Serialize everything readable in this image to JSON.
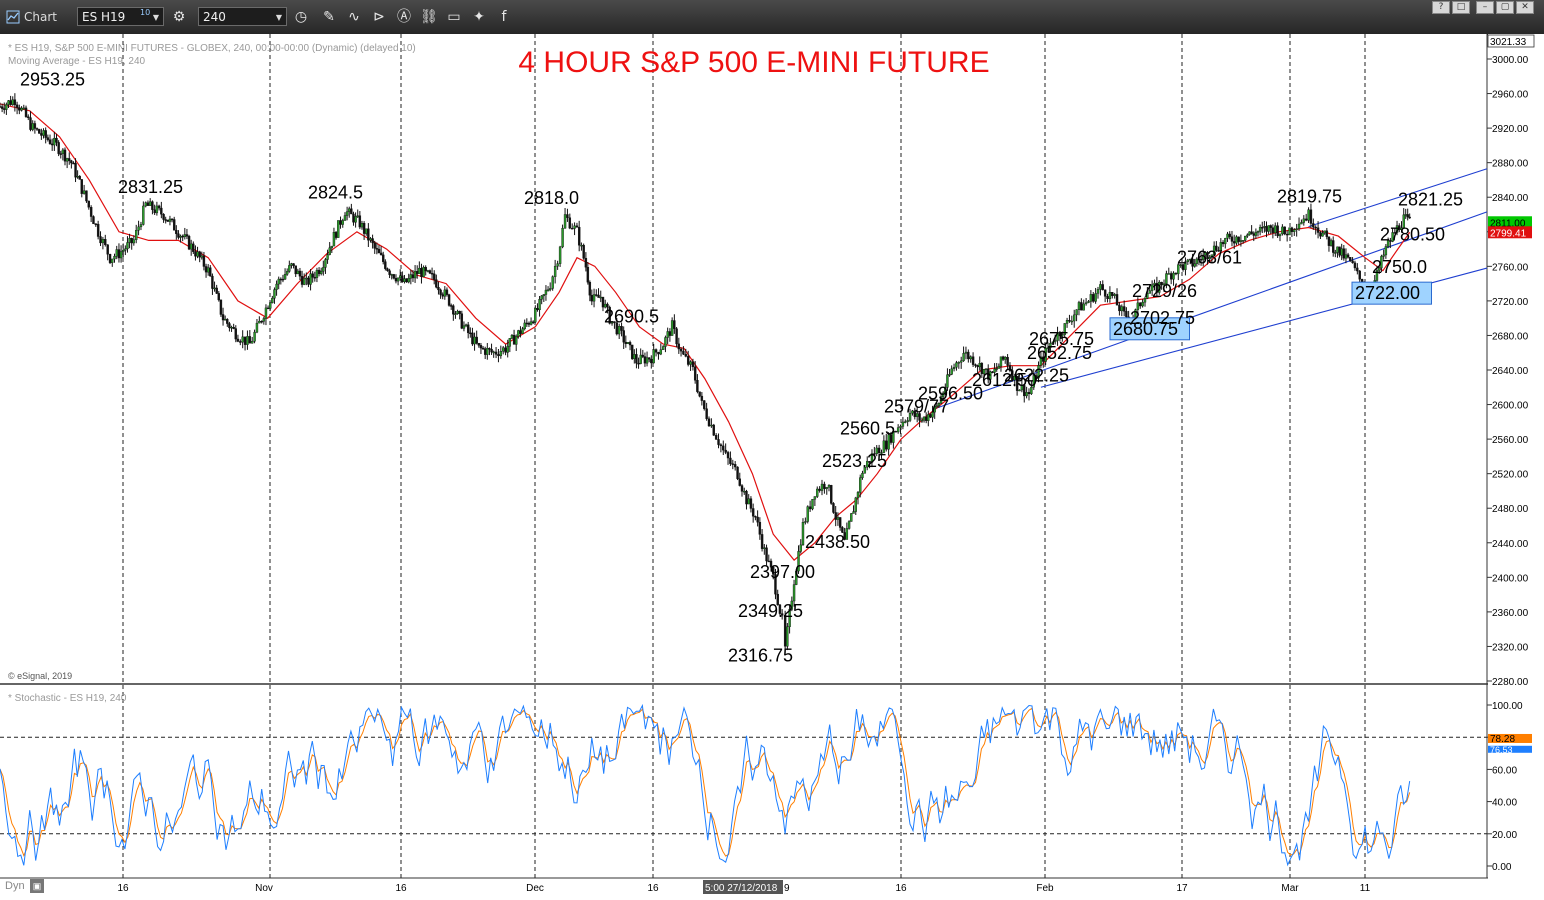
{
  "toolbar": {
    "window_title": "Chart",
    "symbol": "ES H19",
    "symbol_superscript": "10",
    "interval": "240",
    "icons": [
      "gear-icon",
      "clock-icon",
      "pencil-icon",
      "draw-curve-icon",
      "play-icon",
      "alert-icon",
      "link-icon",
      "comment-icon",
      "twitter-icon",
      "facebook-icon"
    ],
    "window_buttons": [
      "?",
      "□",
      "–",
      "▢",
      "✕"
    ]
  },
  "chart_data": {
    "type": "line",
    "title": "4 HOUR  S&P 500 E-MINI FUTURE",
    "info_line1": "* ES H19, S&P 500 E-MINI FUTURES - GLOBEX, 240, 00:00-00:00 (Dynamic) (delayed 10)",
    "info_line2": "Moving Average - ES H19, 240",
    "copyright": "© eSignal, 2019",
    "price_axis": {
      "ylim": [
        2280,
        3021.33
      ],
      "ticks": [
        "3000.00",
        "2960.00",
        "2920.00",
        "2880.00",
        "2840.00",
        "2800.00",
        "2760.00",
        "2720.00",
        "2680.00",
        "2640.00",
        "2600.00",
        "2560.00",
        "2520.00",
        "2480.00",
        "2440.00",
        "2400.00",
        "2360.00",
        "2320.00",
        "2280.00"
      ],
      "top_label": "3021.33",
      "last_price": "2811.00",
      "ma_value": "2799.41",
      "last_price_color": "#00c800",
      "ma_color": "#e01010"
    },
    "x_axis": {
      "ticks": [
        "16",
        "Nov",
        "16",
        "Dec",
        "16",
        "16",
        "Feb",
        "17",
        "Mar",
        "11"
      ],
      "tick_positions_note": "tick labels",
      "crosshair_label": "5:00 27/12/2018",
      "crosshair_suffix": "9"
    },
    "series": [
      {
        "name": "ES H19 (approx. close path)",
        "points": [
          [
            0,
            2945
          ],
          [
            10,
            2953.25
          ],
          [
            22,
            2920
          ],
          [
            38,
            2900
          ],
          [
            48,
            2880
          ],
          [
            55,
            2850
          ],
          [
            66,
            2800
          ],
          [
            74,
            2770
          ],
          [
            80,
            2775
          ],
          [
            90,
            2790
          ],
          [
            98,
            2831.25
          ],
          [
            110,
            2820
          ],
          [
            120,
            2800
          ],
          [
            130,
            2780
          ],
          [
            140,
            2755
          ],
          [
            150,
            2700
          ],
          [
            160,
            2680
          ],
          [
            168,
            2670
          ],
          [
            176,
            2700
          ],
          [
            186,
            2740
          ],
          [
            196,
            2760
          ],
          [
            206,
            2740
          ],
          [
            216,
            2760
          ],
          [
            226,
            2800
          ],
          [
            232,
            2824.5
          ],
          [
            242,
            2810
          ],
          [
            252,
            2780
          ],
          [
            262,
            2755
          ],
          [
            272,
            2740
          ],
          [
            282,
            2755
          ],
          [
            292,
            2745
          ],
          [
            302,
            2720
          ],
          [
            312,
            2690
          ],
          [
            322,
            2665
          ],
          [
            332,
            2660
          ],
          [
            340,
            2665
          ],
          [
            350,
            2685
          ],
          [
            360,
            2705
          ],
          [
            370,
            2740
          ],
          [
            375,
            2770
          ],
          [
            380,
            2818
          ],
          [
            388,
            2800
          ],
          [
            394,
            2760
          ],
          [
            398,
            2720
          ],
          [
            404,
            2725
          ],
          [
            410,
            2700
          ],
          [
            418,
            2680
          ],
          [
            428,
            2650
          ],
          [
            438,
            2655
          ],
          [
            446,
            2670
          ],
          [
            452,
            2690.5
          ],
          [
            458,
            2660
          ],
          [
            466,
            2640
          ],
          [
            472,
            2600
          ],
          [
            480,
            2570
          ],
          [
            488,
            2540
          ],
          [
            496,
            2520
          ],
          [
            502,
            2490
          ],
          [
            508,
            2470
          ],
          [
            514,
            2430
          ],
          [
            520,
            2400
          ],
          [
            526,
            2349.25
          ],
          [
            528,
            2316.75
          ],
          [
            534,
            2397
          ],
          [
            540,
            2460
          ],
          [
            548,
            2500
          ],
          [
            556,
            2510
          ],
          [
            562,
            2470
          ],
          [
            568,
            2440
          ],
          [
            574,
            2480
          ],
          [
            580,
            2523.25
          ],
          [
            588,
            2545
          ],
          [
            596,
            2555
          ],
          [
            604,
            2575
          ],
          [
            612,
            2590
          ],
          [
            620,
            2582
          ],
          [
            630,
            2596.5
          ],
          [
            640,
            2640
          ],
          [
            648,
            2660
          ],
          [
            656,
            2650
          ],
          [
            666,
            2632
          ],
          [
            676,
            2655
          ],
          [
            684,
            2622.25
          ],
          [
            692,
            2612.5
          ],
          [
            700,
            2650
          ],
          [
            708,
            2675.75
          ],
          [
            716,
            2690
          ],
          [
            724,
            2710
          ],
          [
            732,
            2720
          ],
          [
            740,
            2735
          ],
          [
            748,
            2725
          ],
          [
            756,
            2702.75
          ],
          [
            762,
            2700
          ],
          [
            770,
            2729
          ],
          [
            778,
            2735
          ],
          [
            786,
            2750
          ],
          [
            794,
            2760
          ],
          [
            802,
            2763
          ],
          [
            812,
            2775
          ],
          [
            824,
            2790
          ],
          [
            836,
            2795
          ],
          [
            846,
            2800
          ],
          [
            856,
            2805
          ],
          [
            864,
            2798
          ],
          [
            872,
            2810
          ],
          [
            880,
            2819.75
          ],
          [
            888,
            2800
          ],
          [
            898,
            2780
          ],
          [
            908,
            2765
          ],
          [
            916,
            2740
          ],
          [
            920,
            2722
          ],
          [
            926,
            2750
          ],
          [
            932,
            2780.5
          ],
          [
            938,
            2800
          ],
          [
            944,
            2815
          ],
          [
            948,
            2811
          ]
        ]
      },
      {
        "name": "Moving Average",
        "points": [
          [
            0,
            2948
          ],
          [
            20,
            2940
          ],
          [
            40,
            2910
          ],
          [
            60,
            2860
          ],
          [
            80,
            2800
          ],
          [
            100,
            2790
          ],
          [
            120,
            2790
          ],
          [
            140,
            2770
          ],
          [
            160,
            2720
          ],
          [
            180,
            2700
          ],
          [
            200,
            2740
          ],
          [
            220,
            2775
          ],
          [
            240,
            2800
          ],
          [
            260,
            2780
          ],
          [
            280,
            2750
          ],
          [
            300,
            2740
          ],
          [
            320,
            2700
          ],
          [
            340,
            2670
          ],
          [
            360,
            2690
          ],
          [
            376,
            2730
          ],
          [
            388,
            2770
          ],
          [
            400,
            2760
          ],
          [
            414,
            2730
          ],
          [
            430,
            2690
          ],
          [
            446,
            2670
          ],
          [
            460,
            2665
          ],
          [
            474,
            2630
          ],
          [
            490,
            2580
          ],
          [
            506,
            2520
          ],
          [
            520,
            2450
          ],
          [
            534,
            2420
          ],
          [
            548,
            2440
          ],
          [
            562,
            2470
          ],
          [
            576,
            2490
          ],
          [
            590,
            2520
          ],
          [
            606,
            2560
          ],
          [
            622,
            2585
          ],
          [
            640,
            2610
          ],
          [
            660,
            2640
          ],
          [
            680,
            2645
          ],
          [
            700,
            2645
          ],
          [
            720,
            2680
          ],
          [
            740,
            2715
          ],
          [
            760,
            2720
          ],
          [
            780,
            2725
          ],
          [
            800,
            2745
          ],
          [
            820,
            2775
          ],
          [
            840,
            2790
          ],
          [
            860,
            2800
          ],
          [
            880,
            2805
          ],
          [
            900,
            2795
          ],
          [
            918,
            2770
          ],
          [
            930,
            2755
          ],
          [
            940,
            2780
          ],
          [
            948,
            2799.41
          ]
        ]
      }
    ],
    "annotations": [
      {
        "text": "2953.25",
        "x": 10,
        "y": 2953.25,
        "boxed": false
      },
      {
        "text": "2831.25",
        "x": 98,
        "y": 2831.25,
        "boxed": false
      },
      {
        "text": "2824.5",
        "x": 232,
        "y": 2824.5,
        "boxed": false
      },
      {
        "text": "2818.0",
        "x": 380,
        "y": 2818,
        "boxed": false
      },
      {
        "text": "2690.5",
        "x": 452,
        "y": 2690.5,
        "boxed": false
      },
      {
        "text": "2316.75",
        "x": 528,
        "y": 2316.75,
        "boxed": false
      },
      {
        "text": "2349.25",
        "x": 526,
        "y": 2349.25,
        "boxed": false
      },
      {
        "text": "2397.00",
        "x": 534,
        "y": 2397,
        "boxed": false
      },
      {
        "text": "2438.50",
        "x": 568,
        "y": 2438.5,
        "boxed": false
      },
      {
        "text": "2523.25",
        "x": 580,
        "y": 2523.25,
        "boxed": false
      },
      {
        "text": "2560.5",
        "x": 596,
        "y": 2560.5,
        "boxed": false
      },
      {
        "text": "2579/77",
        "x": 620,
        "y": 2579,
        "boxed": false
      },
      {
        "text": "2596.50",
        "x": 630,
        "y": 2596.5,
        "boxed": false
      },
      {
        "text": "2612.50",
        "x": 692,
        "y": 2612.5,
        "boxed": false
      },
      {
        "text": "2622.25",
        "x": 684,
        "y": 2622.25,
        "boxed": false
      },
      {
        "text": "2652.75",
        "x": 700,
        "y": 2652.75,
        "boxed": false
      },
      {
        "text": "2675.75",
        "x": 708,
        "y": 2675.75,
        "boxed": false
      },
      {
        "text": "2680.75",
        "x": 762,
        "y": 2680.75,
        "boxed": true
      },
      {
        "text": "2702.75",
        "x": 756,
        "y": 2702.75,
        "boxed": false
      },
      {
        "text": "2729/26",
        "x": 770,
        "y": 2729,
        "boxed": false
      },
      {
        "text": "2763/61",
        "x": 802,
        "y": 2763,
        "boxed": false
      },
      {
        "text": "2819.75",
        "x": 880,
        "y": 2819.75,
        "boxed": false
      },
      {
        "text": "2722.00",
        "x": 920,
        "y": 2722,
        "boxed": true
      },
      {
        "text": "2750.0",
        "x": 926,
        "y": 2750,
        "boxed": false
      },
      {
        "text": "2780.50",
        "x": 932,
        "y": 2780.5,
        "boxed": false
      },
      {
        "text": "2821.25",
        "x": 944,
        "y": 2821.25,
        "boxed": false
      }
    ],
    "trendlines": [
      {
        "from": [
          630,
          2596
        ],
        "to": [
          1000,
          2823
        ]
      },
      {
        "from": [
          700,
          2620
        ],
        "to": [
          1000,
          2758
        ]
      },
      {
        "from": [
          880,
          2806
        ],
        "to": [
          1000,
          2873
        ]
      }
    ],
    "stochastic": {
      "title": "* Stochastic - ES H19, 240",
      "ylim": [
        -10,
        110
      ],
      "ticks": [
        "100.00",
        "80.00",
        "60.00",
        "40.00",
        "20.00",
        "0.00"
      ],
      "levels": [
        80,
        20
      ],
      "k_value": "78.28",
      "d_value": "76.53",
      "k_color": "#1e7fff",
      "d_color": "#ff7f00"
    },
    "grid": true,
    "legend": "none"
  },
  "statusbar": {
    "label": "Dyn"
  }
}
